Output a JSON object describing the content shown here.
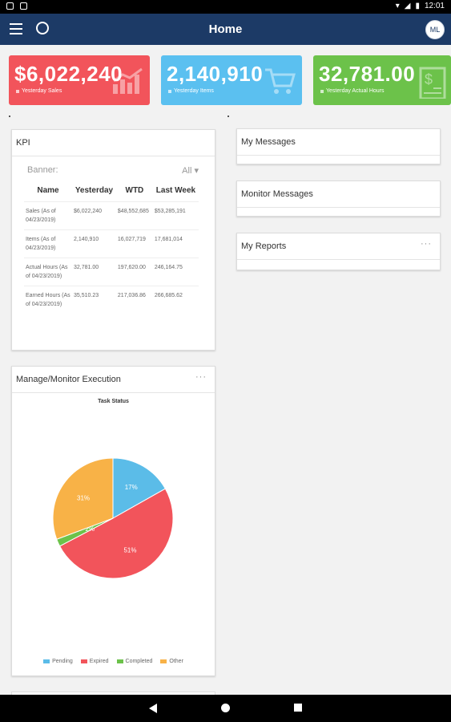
{
  "statusbar": {
    "time": "12:01"
  },
  "appbar": {
    "title": "Home",
    "avatar": "ML"
  },
  "stats": [
    {
      "value": "$6,022,240",
      "label": "Yesterday Sales",
      "color": "#f2545b",
      "icon": "bar-chart-icon"
    },
    {
      "value": "2,140,910",
      "label": "Yesterday Items",
      "color": "#5bc0f0",
      "icon": "shopping-cart-icon"
    },
    {
      "value": "32,781.00",
      "label": "Yesterday Actual Hours",
      "color": "#6cc24a",
      "icon": "dollar-document-icon"
    }
  ],
  "kpi": {
    "title": "KPI",
    "banner_label": "Banner:",
    "banner_value": "All",
    "columns": [
      "Name",
      "Yesterday",
      "WTD",
      "Last Week"
    ],
    "rows": [
      {
        "name": "Sales (As of 04/23/2019)",
        "yesterday": "$6,022,240",
        "wtd": "$48,552,685",
        "last_week": "$53,285,191"
      },
      {
        "name": "Items (As of 04/23/2019)",
        "yesterday": "2,140,910",
        "wtd": "16,027,719",
        "last_week": "17,681,014"
      },
      {
        "name": "Actual Hours (As of 04/23/2019)",
        "yesterday": "32,781.00",
        "wtd": "197,620.00",
        "last_week": "246,164.75"
      },
      {
        "name": "Earned Hours (As of 04/23/2019)",
        "yesterday": "35,510.23",
        "wtd": "217,036.86",
        "last_week": "266,685.62"
      }
    ]
  },
  "execution": {
    "title": "Manage/Monitor Execution",
    "more": "···"
  },
  "chart_data": {
    "type": "pie",
    "title": "Task Status",
    "categories": [
      "Pending",
      "Expired",
      "Completed",
      "Other"
    ],
    "values": [
      17,
      51,
      2,
      31
    ],
    "labels": [
      "17%",
      "51%",
      "2%",
      "31%"
    ],
    "colors": [
      "#5bbce8",
      "#f2545b",
      "#6cc24a",
      "#f8b247"
    ],
    "legend": "bottom"
  },
  "messages": {
    "title": "My Messages"
  },
  "monitor": {
    "title": "Monitor Messages"
  },
  "reports": {
    "title": "My Reports",
    "more": "···"
  }
}
